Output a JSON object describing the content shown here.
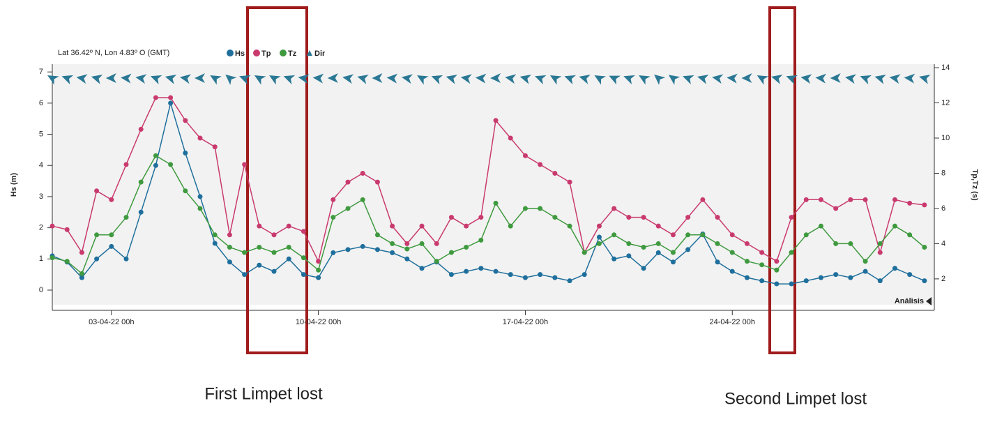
{
  "chart_data": {
    "type": "line",
    "title": "Lat 36.42º N, Lon 4.83º O (GMT)",
    "ylabel": "Hs (m)",
    "y2label": "Tp,Tz (s)",
    "corner_label": "Análisis",
    "annotations": [
      "First Limpet lost",
      "Second Limpet lost"
    ],
    "x": [
      "01-04-22 00h",
      "01-04-22 12h",
      "02-04-22 00h",
      "02-04-22 12h",
      "03-04-22 00h",
      "03-04-22 12h",
      "04-04-22 00h",
      "04-04-22 12h",
      "05-04-22 00h",
      "05-04-22 12h",
      "06-04-22 00h",
      "06-04-22 12h",
      "07-04-22 00h",
      "07-04-22 12h",
      "08-04-22 00h",
      "08-04-22 12h",
      "09-04-22 00h",
      "09-04-22 12h",
      "10-04-22 00h",
      "10-04-22 12h",
      "11-04-22 00h",
      "11-04-22 12h",
      "12-04-22 00h",
      "12-04-22 12h",
      "13-04-22 00h",
      "13-04-22 12h",
      "14-04-22 00h",
      "14-04-22 12h",
      "15-04-22 00h",
      "15-04-22 12h",
      "16-04-22 00h",
      "16-04-22 12h",
      "17-04-22 00h",
      "17-04-22 12h",
      "18-04-22 00h",
      "18-04-22 12h",
      "19-04-22 00h",
      "19-04-22 12h",
      "20-04-22 00h",
      "20-04-22 12h",
      "21-04-22 00h",
      "21-04-22 12h",
      "22-04-22 00h",
      "22-04-22 12h",
      "23-04-22 00h",
      "23-04-22 12h",
      "24-04-22 00h",
      "24-04-22 12h",
      "25-04-22 00h",
      "25-04-22 12h",
      "26-04-22 00h",
      "26-04-22 12h",
      "27-04-22 00h",
      "27-04-22 12h",
      "28-04-22 00h",
      "28-04-22 12h",
      "29-04-22 00h",
      "29-04-22 12h",
      "30-04-22 00h",
      "30-04-22 12h"
    ],
    "xlim": [
      "01-04-22 00h",
      "30-04-22 20h"
    ],
    "xticks": [
      "03-04-22 00h",
      "10-04-22 00h",
      "17-04-22 00h",
      "24-04-22 00h"
    ],
    "ylim": [
      -0.47,
      7.25
    ],
    "yticks": [
      0,
      1,
      2,
      3,
      4,
      5,
      6,
      7
    ],
    "y2lim": [
      0.53,
      14.2
    ],
    "y2ticks": [
      2,
      4,
      6,
      8,
      10,
      12,
      14
    ],
    "grid": false,
    "series": [
      {
        "name": "Hs",
        "color": "#1f6f9c",
        "values": [
          1.1,
          0.9,
          0.4,
          1.0,
          1.4,
          1.0,
          2.5,
          4.0,
          6.0,
          4.4,
          3.0,
          1.5,
          0.9,
          0.5,
          0.8,
          0.6,
          1.0,
          0.5,
          0.4,
          1.2,
          1.3,
          1.4,
          1.3,
          1.2,
          1.0,
          0.7,
          0.9,
          0.5,
          0.6,
          0.7,
          0.6,
          0.5,
          0.4,
          0.5,
          0.4,
          0.3,
          0.5,
          1.7,
          1.0,
          1.1,
          0.7,
          1.2,
          0.9,
          1.3,
          1.8,
          0.9,
          0.6,
          0.4,
          0.3,
          0.2,
          0.2,
          0.3,
          0.4,
          0.5,
          0.4,
          0.6,
          0.3,
          0.7,
          0.5,
          0.3
        ]
      },
      {
        "name": "Tp",
        "color": "#c93a6e",
        "axis": "y2",
        "values": [
          5.0,
          4.8,
          3.5,
          7.0,
          6.5,
          8.5,
          10.5,
          12.3,
          12.3,
          11.0,
          10.0,
          9.5,
          4.5,
          8.5,
          5.0,
          4.5,
          5.0,
          4.7,
          3.0,
          6.5,
          7.5,
          8.0,
          7.5,
          5.0,
          4.0,
          5.0,
          4.0,
          5.5,
          5.0,
          5.5,
          11.0,
          10.0,
          9.0,
          8.5,
          8.0,
          7.5,
          3.5,
          5.0,
          6.0,
          5.5,
          5.5,
          5.0,
          4.5,
          5.5,
          6.5,
          5.5,
          4.5,
          4.0,
          3.5,
          3.0,
          5.5,
          6.5,
          6.5,
          6.0,
          6.5,
          6.5,
          3.5,
          6.5,
          6.3,
          6.2
        ]
      },
      {
        "name": "Tz",
        "color": "#3f9a3f",
        "axis": "y2",
        "values": [
          3.2,
          3.0,
          2.3,
          4.5,
          4.5,
          5.5,
          7.5,
          9.0,
          8.5,
          7.0,
          6.0,
          4.5,
          3.8,
          3.5,
          3.8,
          3.5,
          3.8,
          3.2,
          2.5,
          5.5,
          6.0,
          6.5,
          4.5,
          4.0,
          3.7,
          4.0,
          3.0,
          3.5,
          3.8,
          4.2,
          6.3,
          5.0,
          6.0,
          6.0,
          5.5,
          5.0,
          3.5,
          4.0,
          4.5,
          4.0,
          3.8,
          4.0,
          3.5,
          4.5,
          4.5,
          4.0,
          3.5,
          3.0,
          2.8,
          2.5,
          3.5,
          4.5,
          5.0,
          4.0,
          4.0,
          3.0,
          4.0,
          5.0,
          4.5,
          3.8
        ]
      },
      {
        "name": "Dir",
        "color": "#2a7894",
        "axis": "dir",
        "values": [
          300,
          290,
          280,
          285,
          270,
          275,
          280,
          290,
          285,
          280,
          270,
          300,
          310,
          290,
          300,
          300,
          290,
          280,
          275,
          270,
          280,
          285,
          270,
          275,
          280,
          300,
          290,
          285,
          280,
          275,
          270,
          280,
          285,
          290,
          300,
          290,
          285,
          300,
          295,
          290,
          300,
          310,
          305,
          290,
          285,
          280,
          275,
          270,
          300,
          285,
          290,
          280,
          275,
          270,
          280,
          290,
          285,
          280,
          275,
          285
        ]
      }
    ]
  }
}
